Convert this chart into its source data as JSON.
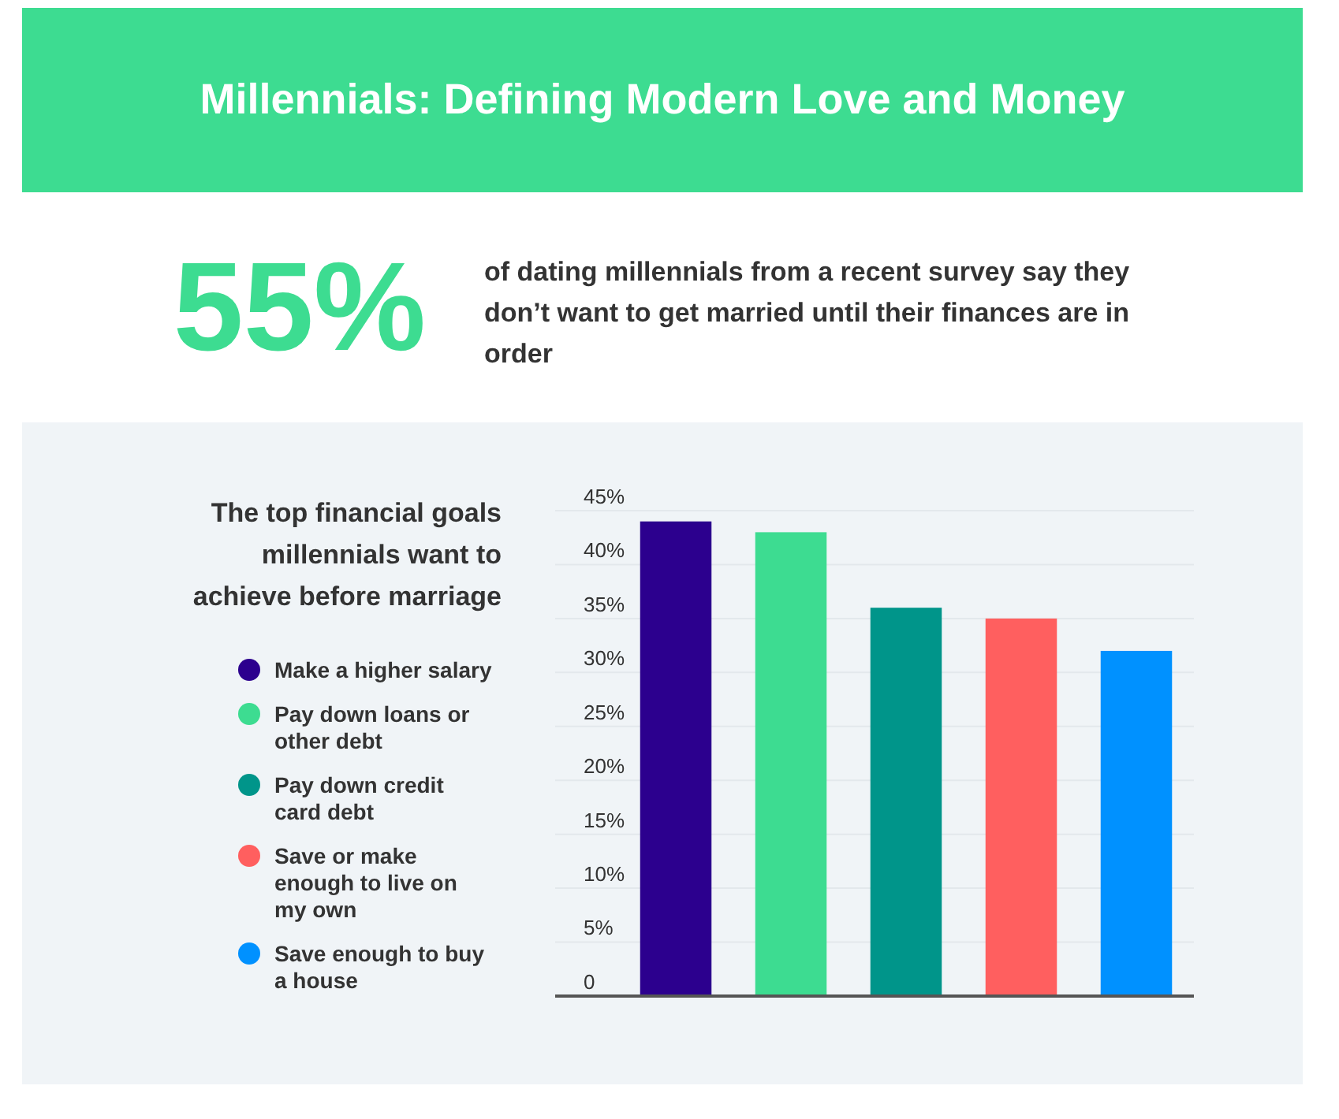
{
  "chart_data": {
    "type": "bar",
    "title": "Millennials: Defining Modern Love and Money",
    "subtitle": "The top financial goals millennials want to achieve before marriage",
    "annotations": [
      "55%",
      "of dating millennials from a recent survey say they don’t want to get married until their finances are in order"
    ],
    "categories": [
      null
    ],
    "series": [
      {
        "name": "Make a higher salary",
        "color": "#2c008e",
        "values": [
          44
        ]
      },
      {
        "name": "Pay down loans or other debt",
        "color": "#3ddc91",
        "values": [
          43
        ]
      },
      {
        "name": "Pay down credit card debt",
        "color": "#00958a",
        "values": [
          36
        ]
      },
      {
        "name": "Save or make enough to live on my own",
        "color": "#ff5f5f",
        "values": [
          35
        ]
      },
      {
        "name": "Save enough to buy a house",
        "color": "#0091ff",
        "values": [
          32
        ]
      }
    ],
    "ylim": [
      0,
      45
    ],
    "yticks": [
      0,
      {
        "value": 5,
        "label": "5%"
      },
      {
        "value": 10,
        "label": "10%"
      },
      {
        "value": 15,
        "label": "15%"
      },
      {
        "value": 20,
        "label": "20%"
      },
      {
        "value": 25,
        "label": "25%"
      },
      {
        "value": 30,
        "label": "30%"
      },
      {
        "value": 35,
        "label": "35%"
      },
      {
        "value": 40,
        "label": "40%"
      },
      {
        "value": 45,
        "label": "45%"
      }
    ],
    "grid": "y",
    "legend": "left",
    "tick_labels": "y"
  }
}
